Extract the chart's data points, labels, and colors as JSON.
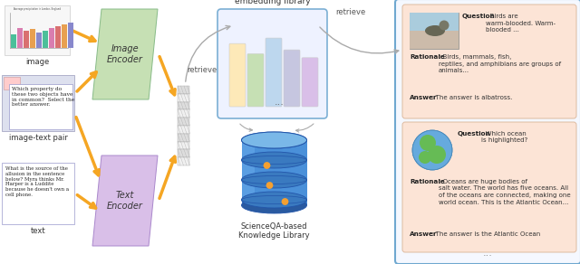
{
  "bg_color": "#ffffff",
  "fig_width": 6.4,
  "fig_height": 2.92,
  "image_encoder_color": "#c6e0b4",
  "text_encoder_color": "#d9bfe8",
  "card_bg_color": "#fce4d6",
  "outer_box_color": "#6fa8d0",
  "arrow_color": "#f5a623",
  "image_label": "image",
  "image_text_label": "image-text pair",
  "text_label": "text",
  "image_encoder_label": "Image\nEncoder",
  "text_encoder_label": "Text\nEncoder",
  "embedding_lib_label": "embedding library",
  "knowledge_lib_label": "ScienceQA-based\nKnowledge Library",
  "retrieve_left": "retrieve",
  "retrieve_right": "retrieve",
  "card1_q_bold": "Question",
  "card1_q_text": ": Birds are\nwarm-blooded. Warm-\nblooded ...",
  "card1_r_bold": "Rationale",
  "card1_r_text": ": Birds, mammals, fish,\nreptiles, and amphibians are groups of\nanimals...",
  "card1_a_bold": "Answer",
  "card1_a_text": ": The answer is albatross.",
  "card2_q_bold": "Question",
  "card2_q_text": ": Which ocean\nis highlighted?",
  "card2_r_bold": "Rationale",
  "card2_r_text": ": Oceans are huge bodies of\nsalt water. The world has five oceans. All\nof the oceans are connected, making one\nworld ocean. This is the Atlantic Ocean...",
  "card2_a_bold": "Answer",
  "card2_a_text": ": The answer is the Atlantic Ocean",
  "dots": "..."
}
